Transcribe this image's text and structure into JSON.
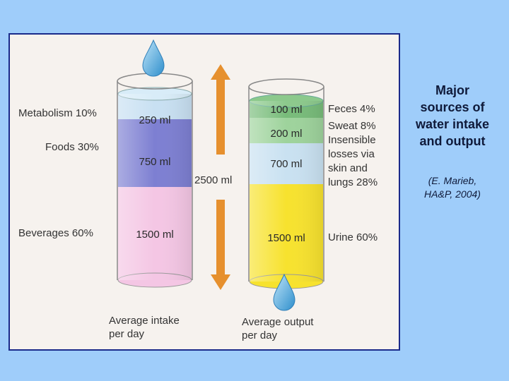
{
  "slide": {
    "title": "Major sources of water intake and output",
    "citation": "(E. Marieb, HA&P, 2004)"
  },
  "diagram": {
    "total": "2500 ml",
    "intake": {
      "caption_line1": "Average intake",
      "caption_line2": "per day",
      "segments": [
        {
          "label": "Metabolism 10%",
          "volume": "250 ml",
          "color": "#c8e0f2"
        },
        {
          "label": "Foods 30%",
          "volume": "750 ml",
          "color": "#7d7fd2"
        },
        {
          "label": "Beverages 60%",
          "volume": "1500 ml",
          "color": "#f4c6e4"
        }
      ]
    },
    "output": {
      "caption_line1": "Average output",
      "caption_line2": "per day",
      "segments": [
        {
          "label": "Feces 4%",
          "volume": "100 ml",
          "color": "#78bc7a"
        },
        {
          "label": "Sweat 8%",
          "volume": "200 ml",
          "color": "#9ed39c"
        },
        {
          "label_lines": [
            "Insensible",
            "losses via",
            "skin and",
            "lungs 28%"
          ],
          "volume": "700 ml",
          "color": "#c9e1f1"
        },
        {
          "label": "Urine 60%",
          "volume": "1500 ml",
          "color": "#f7e22e"
        }
      ]
    },
    "colors": {
      "arrow": "#e6902e",
      "drop": "#4aa6d8",
      "frame": "#1a2a8a"
    }
  }
}
